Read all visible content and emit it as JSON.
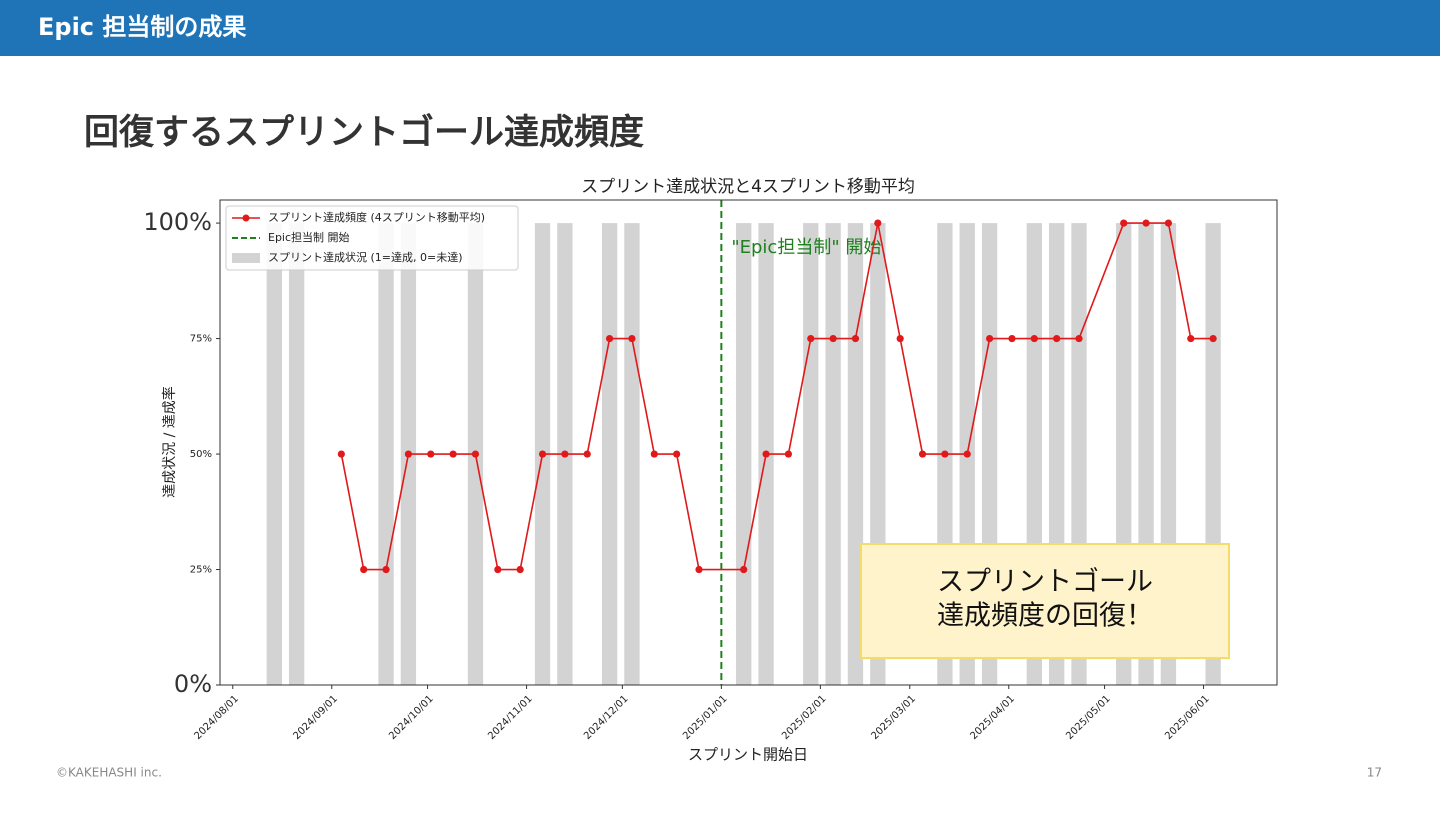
{
  "header": {
    "title": "Epic 担当制の成果"
  },
  "heading": "回復するスプリントゴール達成頻度",
  "footer": {
    "copyright": "©KAKEHASHI inc.",
    "page": "17"
  },
  "callout": {
    "lines": [
      "スプリントゴール",
      "達成頻度の回復！"
    ]
  },
  "chart_data": {
    "type": "line",
    "title": "スプリント達成状況と4スプリント移動平均",
    "x_label": "スプリント開始日",
    "y_label": "達成状況 / 達成率",
    "x": [
      "2024/08/14",
      "2024/08/21",
      "2024/08/28",
      "2024/09/04",
      "2024/09/11",
      "2024/09/18",
      "2024/09/25",
      "2024/10/02",
      "2024/10/09",
      "2024/10/16",
      "2024/10/23",
      "2024/10/30",
      "2024/11/06",
      "2024/11/13",
      "2024/11/20",
      "2024/11/27",
      "2024/12/04",
      "2024/12/11",
      "2024/12/18",
      "2024/12/25",
      "2025/01/08",
      "2025/01/15",
      "2025/01/22",
      "2025/01/29",
      "2025/02/05",
      "2025/02/12",
      "2025/02/19",
      "2025/02/26",
      "2025/03/05",
      "2025/03/12",
      "2025/03/19",
      "2025/03/26",
      "2025/04/02",
      "2025/04/09",
      "2025/04/16",
      "2025/04/23",
      "2025/05/07",
      "2025/05/14",
      "2025/05/21",
      "2025/05/28",
      "2025/06/04"
    ],
    "series": [
      {
        "name": "スプリント達成状況 (1=達成, 0=未達)",
        "type": "bar",
        "color": "#d3d3d3",
        "values": [
          100,
          100,
          0,
          0,
          0,
          100,
          100,
          0,
          0,
          100,
          0,
          0,
          100,
          100,
          0,
          100,
          100,
          0,
          0,
          0,
          100,
          100,
          0,
          100,
          100,
          100,
          100,
          0,
          0,
          100,
          100,
          100,
          0,
          100,
          100,
          100,
          100,
          100,
          100,
          0,
          100
        ]
      },
      {
        "name": "スプリント達成頻度 (4スプリント移動平均)",
        "type": "line",
        "color": "#e0191b",
        "values": [
          null,
          null,
          null,
          50,
          25,
          25,
          50,
          50,
          50,
          50,
          25,
          25,
          50,
          50,
          50,
          75,
          75,
          50,
          50,
          25,
          25,
          50,
          50,
          75,
          75,
          75,
          100,
          75,
          50,
          50,
          50,
          75,
          75,
          75,
          75,
          75,
          100,
          100,
          100,
          75,
          75
        ]
      }
    ],
    "vline": {
      "x": "2025/01/01",
      "name": "Epic担当制 開始",
      "color": "#1e801e",
      "annotation": "\"Epic担当制\" 開始"
    },
    "xlim": [
      "2024/07/28",
      "2025/06/24"
    ],
    "xticks": [
      "2024/08/01",
      "2024/09/01",
      "2024/10/01",
      "2024/11/01",
      "2024/12/01",
      "2025/01/01",
      "2025/02/01",
      "2025/03/01",
      "2025/04/01",
      "2025/05/01",
      "2025/06/01"
    ],
    "ylim": [
      0,
      105
    ],
    "yticks": [
      {
        "value": 0,
        "label": "0%"
      },
      {
        "value": 25,
        "label": "25%"
      },
      {
        "value": 50,
        "label": "50%"
      },
      {
        "value": 75,
        "label": "75%"
      },
      {
        "value": 100,
        "label": "100%"
      }
    ],
    "legend": "upper left"
  }
}
